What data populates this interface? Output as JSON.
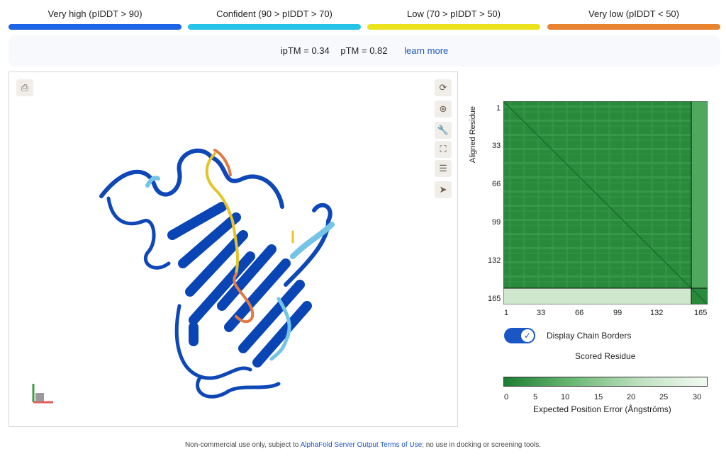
{
  "legend": [
    {
      "label": "Very high (pIDDT > 90)",
      "color": "#1e64e6"
    },
    {
      "label": "Confident (90 > pIDDT > 70)",
      "color": "#25c4e6"
    },
    {
      "label": "Low (70 > pIDDT > 50)",
      "color": "#ece21d"
    },
    {
      "label": "Very low (pIDDT < 50)",
      "color": "#e88330"
    }
  ],
  "metrics": {
    "iptm": "ipTM = 0.34",
    "ptm": "pTM = 0.82",
    "learn_more": "learn more"
  },
  "viewer": {
    "toolbar": [
      {
        "name": "reset-icon",
        "glyph": "⟳"
      },
      {
        "name": "camera-icon",
        "glyph": "⊛"
      },
      {
        "name": "wrench-icon",
        "glyph": "🔧"
      },
      {
        "name": "fullscreen-icon",
        "glyph": "⛶"
      },
      {
        "name": "sliders-icon",
        "glyph": "☰"
      },
      {
        "name": "pointer-icon",
        "glyph": "➤"
      }
    ],
    "top_left_icon": "⎙"
  },
  "pae": {
    "y_axis_label": "Aligned Residue",
    "x_axis_label": "Scored Residue",
    "y_ticks": [
      "1",
      "33",
      "66",
      "99",
      "132",
      "165"
    ],
    "x_ticks": [
      "1",
      "33",
      "66",
      "99",
      "132",
      "165"
    ],
    "colorbar_ticks": [
      "0",
      "5",
      "10",
      "15",
      "20",
      "25",
      "30"
    ],
    "colorbar_label": "Expected Position Error (Ångströms)",
    "toggle_label": "Display Chain Borders",
    "toggle_on": true
  },
  "footer": {
    "prefix": "Non-commercial use only, subject to ",
    "link": "AlphaFold Server Output Terms of Use",
    "suffix": "; no use in docking or screening tools."
  }
}
